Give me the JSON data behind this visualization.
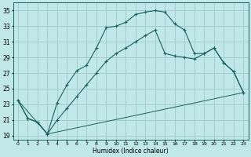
{
  "xlabel": "Humidex (Indice chaleur)",
  "xlim": [
    -0.5,
    23.5
  ],
  "ylim": [
    18.5,
    36
  ],
  "yticks": [
    19,
    21,
    23,
    25,
    27,
    29,
    31,
    33,
    35
  ],
  "xticks": [
    0,
    1,
    2,
    3,
    4,
    5,
    6,
    7,
    8,
    9,
    10,
    11,
    12,
    13,
    14,
    15,
    16,
    17,
    18,
    19,
    20,
    21,
    22,
    23
  ],
  "xtick_labels": [
    "0",
    "1",
    "2",
    "3",
    "4",
    "5",
    "6",
    "7",
    "8",
    "9",
    "10",
    "11",
    "12",
    "13",
    "14",
    "15",
    "16",
    "17",
    "18",
    "19",
    "20",
    "21",
    "22",
    "23"
  ],
  "background_color": "#c0e8e8",
  "grid_color": "#a0c8c8",
  "line_color": "#1a6060",
  "line1_x": [
    0,
    1,
    2,
    3,
    4,
    5,
    6,
    7,
    8,
    9,
    10,
    11,
    12,
    13,
    14,
    15,
    16,
    17,
    18,
    19,
    20,
    21,
    22,
    23
  ],
  "line1_y": [
    23.5,
    21.2,
    20.7,
    19.2,
    23.2,
    25.5,
    27.3,
    28.0,
    30.2,
    32.8,
    33.0,
    33.5,
    34.5,
    34.8,
    35.0,
    34.8,
    33.3,
    32.5,
    29.5,
    29.5,
    30.2,
    28.3,
    27.2,
    24.5
  ],
  "line2_x": [
    0,
    1,
    2,
    3,
    4,
    5,
    6,
    7,
    8,
    9,
    10,
    11,
    12,
    13,
    14,
    15,
    16,
    17,
    18,
    19,
    20,
    21,
    22,
    23
  ],
  "line2_y": [
    23.5,
    21.2,
    20.7,
    19.2,
    21.0,
    22.5,
    24.0,
    25.5,
    27.0,
    28.5,
    29.5,
    30.2,
    31.0,
    31.8,
    32.5,
    29.5,
    29.2,
    29.0,
    28.8,
    29.5,
    30.2,
    28.3,
    27.2,
    24.5
  ],
  "line3_x": [
    0,
    3,
    23
  ],
  "line3_y": [
    23.5,
    19.2,
    24.5
  ]
}
